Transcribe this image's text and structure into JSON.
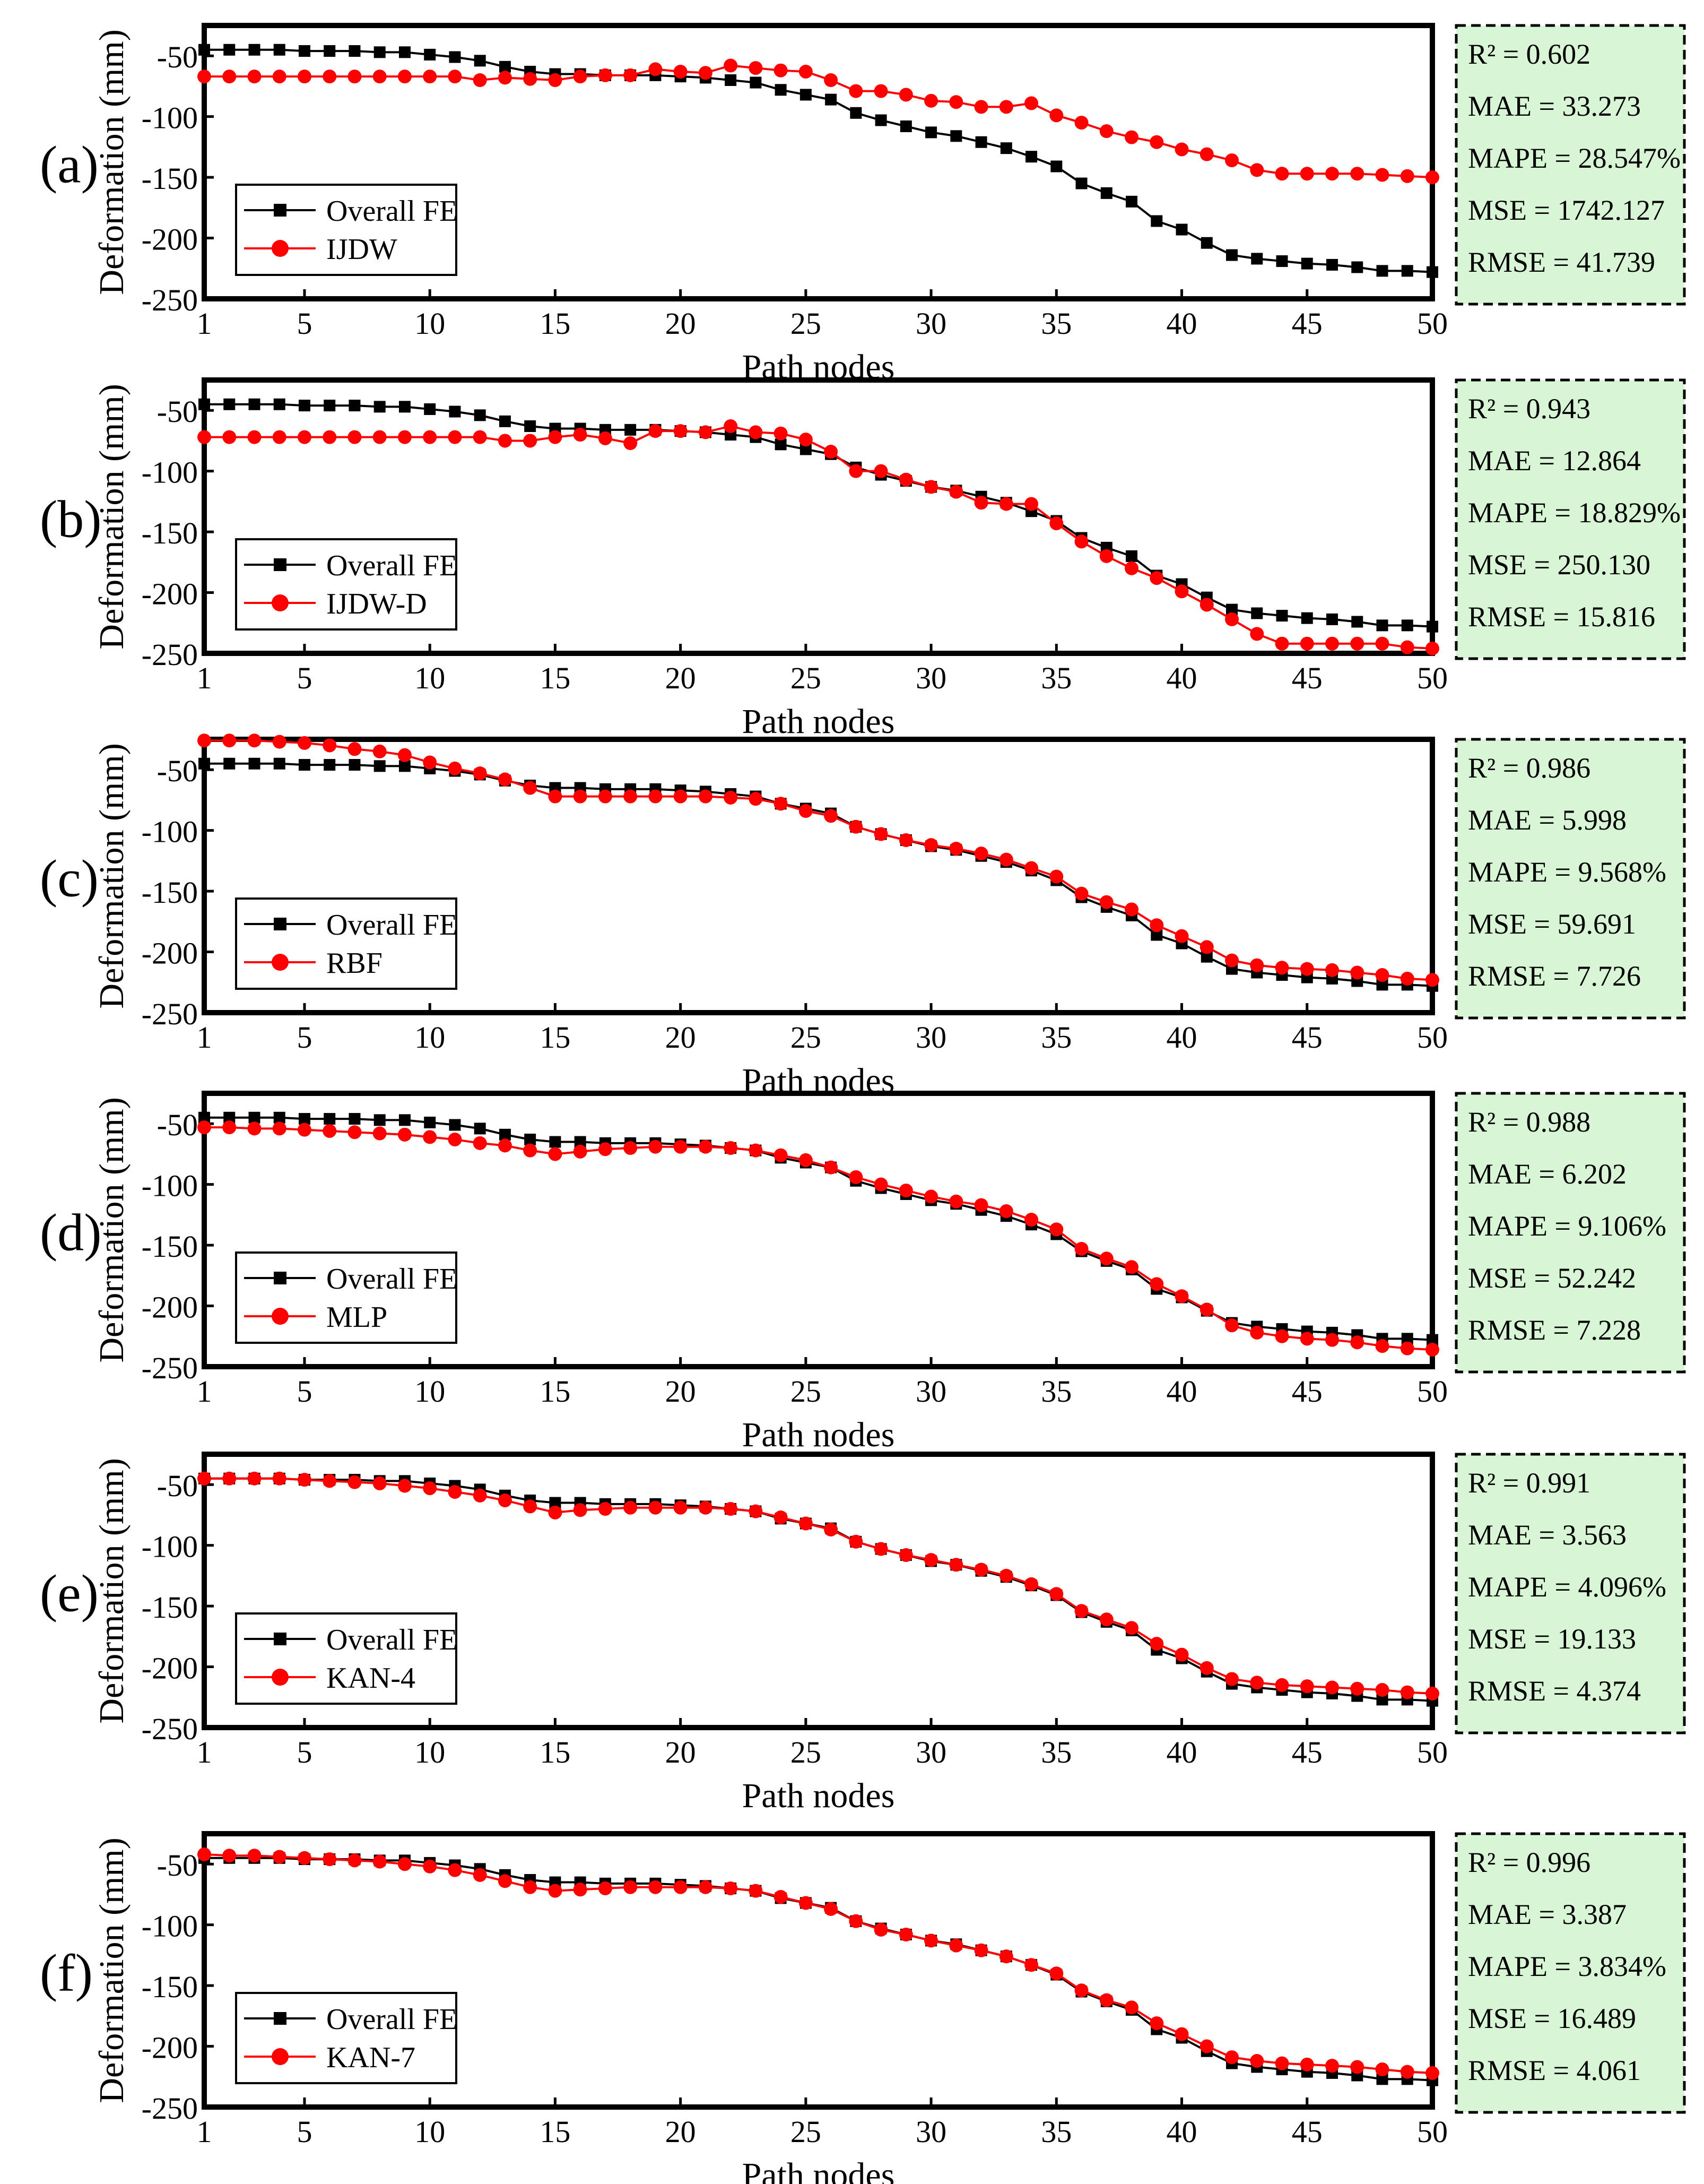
{
  "colors": {
    "overall_fe": "#000000",
    "prediction": "#ff0000",
    "metrics_bg": "#d8f5d5",
    "axis": "#000000"
  },
  "chart_data": [
    {
      "type": "line",
      "panel_label": "(a)",
      "xlabel": "Path nodes",
      "ylabel": "Deformation (mm)",
      "xlim": [
        1,
        50
      ],
      "ylim": [
        -250,
        -25
      ],
      "xticks": [
        1,
        5,
        10,
        15,
        20,
        25,
        30,
        35,
        40,
        45,
        50
      ],
      "yticks": [
        -50,
        -100,
        -150,
        -200,
        -250
      ],
      "legend_position": "bottom-left",
      "x": [
        1,
        2,
        3,
        4,
        5,
        6,
        7,
        8,
        9,
        10,
        11,
        12,
        13,
        14,
        15,
        16,
        17,
        18,
        19,
        20,
        21,
        22,
        23,
        24,
        25,
        26,
        27,
        28,
        29,
        30,
        31,
        32,
        33,
        34,
        35,
        36,
        37,
        38,
        39,
        40,
        41,
        42,
        43,
        44,
        45,
        46,
        47,
        48,
        49,
        50
      ],
      "series": [
        {
          "name": "Overall FE",
          "marker": "square",
          "values": [
            -45,
            -45,
            -45,
            -45,
            -46,
            -46,
            -46,
            -47,
            -47,
            -49,
            -51,
            -54,
            -59,
            -63,
            -65,
            -65,
            -66,
            -66,
            -66,
            -67,
            -68,
            -70,
            -72,
            -78,
            -82,
            -86,
            -97,
            -103,
            -108,
            -113,
            -116,
            -121,
            -126,
            -133,
            -141,
            -155,
            -163,
            -170,
            -186,
            -193,
            -204,
            -214,
            -217,
            -219,
            -221,
            -222,
            -224,
            -227,
            -227,
            -228
          ]
        },
        {
          "name": "IJDW",
          "marker": "circle",
          "values": [
            -67,
            -67,
            -67,
            -67,
            -67,
            -67,
            -67,
            -67,
            -67,
            -67,
            -67,
            -70,
            -68,
            -69,
            -70,
            -67,
            -66,
            -66,
            -61,
            -63,
            -64,
            -58,
            -60,
            -62,
            -63,
            -70,
            -79,
            -79,
            -82,
            -87,
            -88,
            -92,
            -92,
            -89,
            -99,
            -105,
            -112,
            -117,
            -121,
            -127,
            -131,
            -136,
            -144,
            -147,
            -147,
            -147,
            -147,
            -148,
            -149,
            -150
          ]
        }
      ],
      "metrics": [
        "R² = 0.602",
        "MAE = 33.273",
        "MAPE = 28.547%",
        "MSE = 1742.127",
        "RMSE = 41.739"
      ]
    },
    {
      "type": "line",
      "panel_label": "(b)",
      "xlabel": "Path nodes",
      "ylabel": "Deformation (mm)",
      "xlim": [
        1,
        50
      ],
      "ylim": [
        -250,
        -25
      ],
      "xticks": [
        1,
        5,
        10,
        15,
        20,
        25,
        30,
        35,
        40,
        45,
        50
      ],
      "yticks": [
        -50,
        -100,
        -150,
        -200,
        -250
      ],
      "legend_position": "bottom-left",
      "x": [
        1,
        2,
        3,
        4,
        5,
        6,
        7,
        8,
        9,
        10,
        11,
        12,
        13,
        14,
        15,
        16,
        17,
        18,
        19,
        20,
        21,
        22,
        23,
        24,
        25,
        26,
        27,
        28,
        29,
        30,
        31,
        32,
        33,
        34,
        35,
        36,
        37,
        38,
        39,
        40,
        41,
        42,
        43,
        44,
        45,
        46,
        47,
        48,
        49,
        50
      ],
      "series": [
        {
          "name": "Overall FE",
          "marker": "square",
          "values": [
            -45,
            -45,
            -45,
            -45,
            -46,
            -46,
            -46,
            -47,
            -47,
            -49,
            -51,
            -54,
            -59,
            -63,
            -65,
            -65,
            -66,
            -66,
            -66,
            -67,
            -68,
            -70,
            -72,
            -78,
            -82,
            -86,
            -97,
            -103,
            -108,
            -113,
            -116,
            -121,
            -126,
            -133,
            -141,
            -155,
            -163,
            -170,
            -186,
            -193,
            -204,
            -214,
            -217,
            -219,
            -221,
            -222,
            -224,
            -227,
            -227,
            -228
          ]
        },
        {
          "name": "IJDW-D",
          "marker": "circle",
          "values": [
            -72,
            -72,
            -72,
            -72,
            -72,
            -72,
            -72,
            -72,
            -72,
            -72,
            -72,
            -72,
            -75,
            -75,
            -72,
            -70,
            -73,
            -77,
            -67,
            -67,
            -68,
            -63,
            -68,
            -69,
            -74,
            -84,
            -100,
            -100,
            -107,
            -113,
            -117,
            -126,
            -127,
            -127,
            -143,
            -158,
            -170,
            -180,
            -188,
            -199,
            -210,
            -222,
            -234,
            -242,
            -242,
            -242,
            -242,
            -242,
            -245,
            -246
          ]
        }
      ],
      "metrics": [
        "R² = 0.943",
        "MAE = 12.864",
        "MAPE = 18.829%",
        "MSE = 250.130",
        "RMSE = 15.816"
      ]
    },
    {
      "type": "line",
      "panel_label": "(c)",
      "xlabel": "Path nodes",
      "ylabel": "Deformation (mm)",
      "xlim": [
        1,
        50
      ],
      "ylim": [
        -250,
        -25
      ],
      "xticks": [
        1,
        5,
        10,
        15,
        20,
        25,
        30,
        35,
        40,
        45,
        50
      ],
      "yticks": [
        -50,
        -100,
        -150,
        -200,
        -250
      ],
      "legend_position": "bottom-left",
      "x": [
        1,
        2,
        3,
        4,
        5,
        6,
        7,
        8,
        9,
        10,
        11,
        12,
        13,
        14,
        15,
        16,
        17,
        18,
        19,
        20,
        21,
        22,
        23,
        24,
        25,
        26,
        27,
        28,
        29,
        30,
        31,
        32,
        33,
        34,
        35,
        36,
        37,
        38,
        39,
        40,
        41,
        42,
        43,
        44,
        45,
        46,
        47,
        48,
        49,
        50
      ],
      "series": [
        {
          "name": "Overall FE",
          "marker": "square",
          "values": [
            -45,
            -45,
            -45,
            -45,
            -46,
            -46,
            -46,
            -47,
            -47,
            -49,
            -51,
            -54,
            -59,
            -63,
            -65,
            -65,
            -66,
            -66,
            -66,
            -67,
            -68,
            -70,
            -72,
            -78,
            -82,
            -86,
            -97,
            -103,
            -108,
            -113,
            -116,
            -121,
            -126,
            -133,
            -141,
            -155,
            -163,
            -170,
            -186,
            -193,
            -204,
            -214,
            -217,
            -219,
            -221,
            -222,
            -224,
            -227,
            -227,
            -228
          ]
        },
        {
          "name": "RBF",
          "marker": "circle",
          "values": [
            -26,
            -26,
            -26,
            -27,
            -28,
            -30,
            -33,
            -35,
            -38,
            -44,
            -49,
            -53,
            -58,
            -65,
            -72,
            -72,
            -72,
            -72,
            -72,
            -72,
            -72,
            -73,
            -74,
            -78,
            -84,
            -88,
            -97,
            -103,
            -108,
            -112,
            -115,
            -119,
            -124,
            -131,
            -138,
            -152,
            -159,
            -165,
            -178,
            -187,
            -196,
            -207,
            -211,
            -213,
            -214,
            -215,
            -217,
            -219,
            -222,
            -223
          ]
        }
      ],
      "metrics": [
        "R² = 0.986",
        "MAE = 5.998",
        "MAPE = 9.568%",
        "MSE = 59.691",
        "RMSE = 7.726"
      ]
    },
    {
      "type": "line",
      "panel_label": "(d)",
      "xlabel": "Path nodes",
      "ylabel": "Deformation (mm)",
      "xlim": [
        1,
        50
      ],
      "ylim": [
        -250,
        -25
      ],
      "xticks": [
        1,
        5,
        10,
        15,
        20,
        25,
        30,
        35,
        40,
        45,
        50
      ],
      "yticks": [
        -50,
        -100,
        -150,
        -200,
        -250
      ],
      "legend_position": "bottom-left",
      "x": [
        1,
        2,
        3,
        4,
        5,
        6,
        7,
        8,
        9,
        10,
        11,
        12,
        13,
        14,
        15,
        16,
        17,
        18,
        19,
        20,
        21,
        22,
        23,
        24,
        25,
        26,
        27,
        28,
        29,
        30,
        31,
        32,
        33,
        34,
        35,
        36,
        37,
        38,
        39,
        40,
        41,
        42,
        43,
        44,
        45,
        46,
        47,
        48,
        49,
        50
      ],
      "series": [
        {
          "name": "Overall FE",
          "marker": "square",
          "values": [
            -45,
            -45,
            -45,
            -45,
            -46,
            -46,
            -46,
            -47,
            -47,
            -49,
            -51,
            -54,
            -59,
            -63,
            -65,
            -65,
            -66,
            -66,
            -66,
            -67,
            -68,
            -70,
            -72,
            -78,
            -82,
            -86,
            -97,
            -103,
            -108,
            -113,
            -116,
            -121,
            -126,
            -133,
            -141,
            -155,
            -163,
            -170,
            -186,
            -193,
            -204,
            -214,
            -217,
            -219,
            -221,
            -222,
            -224,
            -227,
            -227,
            -228
          ]
        },
        {
          "name": "MLP",
          "marker": "circle",
          "values": [
            -53,
            -53,
            -54,
            -54,
            -55,
            -56,
            -57,
            -58,
            -59,
            -61,
            -63,
            -66,
            -68,
            -72,
            -75,
            -73,
            -71,
            -70,
            -69,
            -69,
            -69,
            -70,
            -72,
            -76,
            -80,
            -86,
            -94,
            -100,
            -105,
            -110,
            -114,
            -117,
            -122,
            -129,
            -137,
            -153,
            -161,
            -168,
            -182,
            -192,
            -203,
            -216,
            -222,
            -225,
            -227,
            -228,
            -230,
            -233,
            -235,
            -236
          ]
        }
      ],
      "metrics": [
        "R² = 0.988",
        "MAE = 6.202",
        "MAPE = 9.106%",
        "MSE = 52.242",
        "RMSE = 7.228"
      ]
    },
    {
      "type": "line",
      "panel_label": "(e)",
      "xlabel": "Path nodes",
      "ylabel": "Deformation (mm)",
      "xlim": [
        1,
        50
      ],
      "ylim": [
        -250,
        -25
      ],
      "xticks": [
        1,
        5,
        10,
        15,
        20,
        25,
        30,
        35,
        40,
        45,
        50
      ],
      "yticks": [
        -50,
        -100,
        -150,
        -200,
        -250
      ],
      "legend_position": "bottom-left",
      "x": [
        1,
        2,
        3,
        4,
        5,
        6,
        7,
        8,
        9,
        10,
        11,
        12,
        13,
        14,
        15,
        16,
        17,
        18,
        19,
        20,
        21,
        22,
        23,
        24,
        25,
        26,
        27,
        28,
        29,
        30,
        31,
        32,
        33,
        34,
        35,
        36,
        37,
        38,
        39,
        40,
        41,
        42,
        43,
        44,
        45,
        46,
        47,
        48,
        49,
        50
      ],
      "series": [
        {
          "name": "Overall FE",
          "marker": "square",
          "values": [
            -45,
            -45,
            -45,
            -45,
            -46,
            -46,
            -46,
            -47,
            -47,
            -49,
            -51,
            -54,
            -59,
            -63,
            -65,
            -65,
            -66,
            -66,
            -66,
            -67,
            -68,
            -70,
            -72,
            -78,
            -82,
            -86,
            -97,
            -103,
            -108,
            -113,
            -116,
            -121,
            -126,
            -133,
            -141,
            -155,
            -163,
            -170,
            -186,
            -193,
            -204,
            -214,
            -217,
            -219,
            -221,
            -222,
            -224,
            -227,
            -227,
            -228
          ]
        },
        {
          "name": "KAN-4",
          "marker": "circle",
          "values": [
            -45,
            -45,
            -45,
            -45,
            -46,
            -47,
            -48,
            -49,
            -51,
            -53,
            -56,
            -59,
            -63,
            -68,
            -73,
            -71,
            -70,
            -69,
            -69,
            -69,
            -69,
            -70,
            -72,
            -77,
            -82,
            -87,
            -97,
            -103,
            -108,
            -112,
            -116,
            -120,
            -125,
            -132,
            -140,
            -154,
            -161,
            -168,
            -181,
            -190,
            -201,
            -210,
            -213,
            -215,
            -216,
            -217,
            -218,
            -219,
            -221,
            -222
          ]
        }
      ],
      "metrics": [
        "R² = 0.991",
        "MAE = 3.563",
        "MAPE = 4.096%",
        "MSE = 19.133",
        "RMSE = 4.374"
      ]
    },
    {
      "type": "line",
      "panel_label": "(f)",
      "xlabel": "Path nodes",
      "ylabel": "Deformation (mm)",
      "xlim": [
        1,
        50
      ],
      "ylim": [
        -250,
        -25
      ],
      "xticks": [
        1,
        5,
        10,
        15,
        20,
        25,
        30,
        35,
        40,
        45,
        50
      ],
      "yticks": [
        -50,
        -100,
        -150,
        -200,
        -250
      ],
      "legend_position": "bottom-left",
      "x": [
        1,
        2,
        3,
        4,
        5,
        6,
        7,
        8,
        9,
        10,
        11,
        12,
        13,
        14,
        15,
        16,
        17,
        18,
        19,
        20,
        21,
        22,
        23,
        24,
        25,
        26,
        27,
        28,
        29,
        30,
        31,
        32,
        33,
        34,
        35,
        36,
        37,
        38,
        39,
        40,
        41,
        42,
        43,
        44,
        45,
        46,
        47,
        48,
        49,
        50
      ],
      "series": [
        {
          "name": "Overall FE",
          "marker": "square",
          "values": [
            -45,
            -45,
            -45,
            -45,
            -46,
            -46,
            -46,
            -47,
            -47,
            -49,
            -51,
            -54,
            -59,
            -63,
            -65,
            -65,
            -66,
            -66,
            -66,
            -67,
            -68,
            -70,
            -72,
            -78,
            -82,
            -86,
            -97,
            -103,
            -108,
            -113,
            -116,
            -121,
            -126,
            -133,
            -141,
            -155,
            -163,
            -170,
            -186,
            -193,
            -204,
            -214,
            -217,
            -219,
            -221,
            -222,
            -224,
            -227,
            -227,
            -228
          ]
        },
        {
          "name": "KAN-7",
          "marker": "circle",
          "values": [
            -42,
            -43,
            -43,
            -44,
            -45,
            -46,
            -47,
            -48,
            -50,
            -52,
            -55,
            -59,
            -64,
            -69,
            -72,
            -71,
            -70,
            -69,
            -69,
            -69,
            -69,
            -70,
            -72,
            -77,
            -82,
            -87,
            -97,
            -104,
            -108,
            -113,
            -117,
            -121,
            -126,
            -133,
            -140,
            -154,
            -162,
            -168,
            -181,
            -190,
            -200,
            -209,
            -212,
            -214,
            -215,
            -216,
            -217,
            -219,
            -221,
            -222
          ]
        }
      ],
      "metrics": [
        "R² = 0.996",
        "MAE = 3.387",
        "MAPE = 3.834%",
        "MSE = 16.489",
        "RMSE = 4.061"
      ]
    }
  ]
}
